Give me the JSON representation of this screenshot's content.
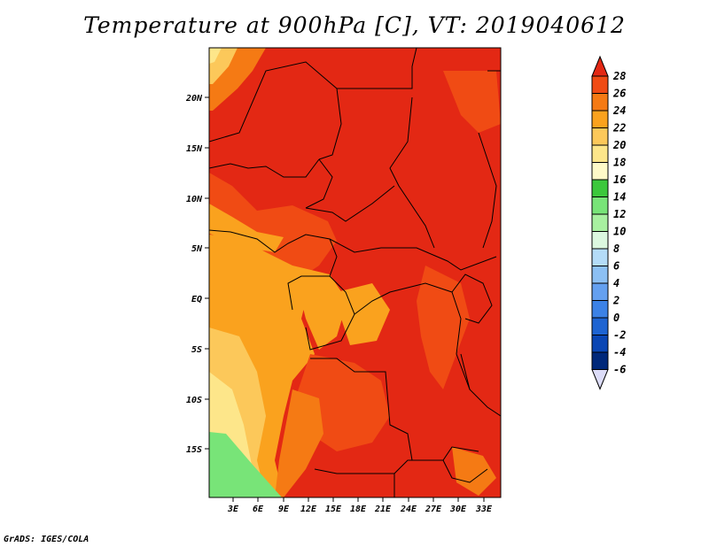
{
  "title": "Temperature at 900hPa [C], VT: 2019040612",
  "credit": "GrADS: IGES/COLA",
  "map": {
    "lat_labels": [
      "20N",
      "15N",
      "10N",
      "5N",
      "EQ",
      "5S",
      "10S",
      "15S"
    ],
    "lon_labels": [
      "3E",
      "6E",
      "9E",
      "12E",
      "15E",
      "18E",
      "21E",
      "24E",
      "27E",
      "30E",
      "33E"
    ]
  },
  "colorbar": {
    "levels": [
      "28",
      "26",
      "24",
      "22",
      "20",
      "18",
      "16",
      "14",
      "12",
      "10",
      "8",
      "6",
      "4",
      "2",
      "0",
      "-2",
      "-4",
      "-6"
    ],
    "colors": [
      "#e32814",
      "#f04b14",
      "#f57a14",
      "#faa21e",
      "#fcc85a",
      "#fde68a",
      "#fffac8",
      "#3cc83c",
      "#78e478",
      "#a8f0a0",
      "#dcf8e0",
      "#b4dcf8",
      "#8cc0f4",
      "#64a0f0",
      "#3c82e6",
      "#1e64d2",
      "#0a46b4",
      "#00287a",
      "#001464"
    ],
    "top_color": "#e32814",
    "bottom_color": "#dcdcf8"
  }
}
